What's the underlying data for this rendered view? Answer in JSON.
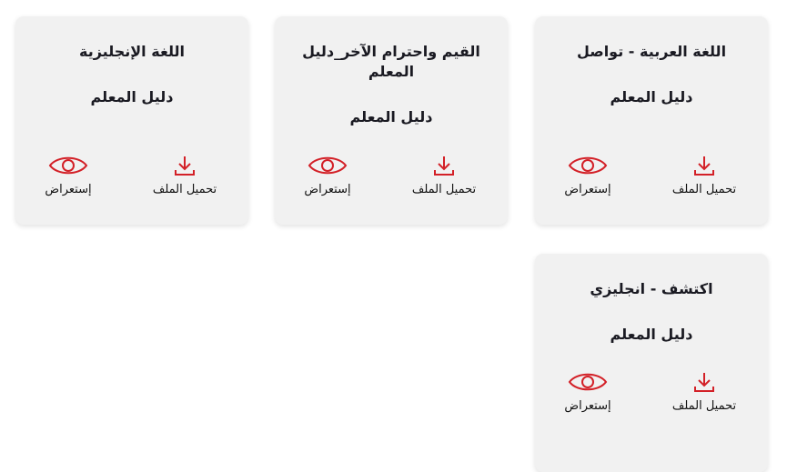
{
  "accent_color": "#d32027",
  "cards": [
    {
      "title": "اللغة العربية - تواصل",
      "subtitle": "دليل المعلم",
      "download_label": "تحميل الملف",
      "view_label": "إستعراض",
      "download_icon": "download-icon",
      "view_icon": "eye-icon"
    },
    {
      "title": "القيم واحترام الآخر_دليل المعلم",
      "subtitle": "دليل المعلم",
      "download_label": "تحميل الملف",
      "view_label": "إستعراض",
      "download_icon": "download-icon",
      "view_icon": "eye-icon"
    },
    {
      "title": "اللغة الإنجليزية",
      "subtitle": "دليل المعلم",
      "download_label": "تحميل الملف",
      "view_label": "إستعراض",
      "download_icon": "download-icon",
      "view_icon": "eye-icon"
    },
    {
      "title": "اكتشف - انجليزي",
      "subtitle": "دليل المعلم",
      "download_label": "تحميل الملف",
      "view_label": "إستعراض",
      "download_icon": "download-icon",
      "view_icon": "eye-icon"
    }
  ]
}
